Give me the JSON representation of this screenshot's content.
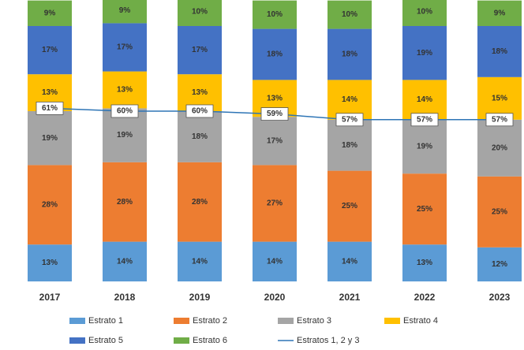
{
  "chart_data": {
    "type": "bar",
    "stacked": true,
    "categories": [
      "2017",
      "2018",
      "2019",
      "2020",
      "2021",
      "2022",
      "2023"
    ],
    "ylim": [
      0,
      100
    ],
    "series": [
      {
        "name": "Estrato 1",
        "color": "#5b9bd5",
        "values": [
          13,
          14,
          14,
          14,
          14,
          13,
          12
        ],
        "value_labels": [
          "13%",
          "14%",
          "14%",
          "14%",
          "14%",
          "13%",
          "12%"
        ]
      },
      {
        "name": "Estrato 2",
        "color": "#ed7d31",
        "values": [
          28,
          28,
          28,
          27,
          25,
          25,
          25
        ],
        "value_labels": [
          "28%",
          "28%",
          "28%",
          "27%",
          "25%",
          "25%",
          "25%"
        ]
      },
      {
        "name": "Estrato 3",
        "color": "#a5a5a5",
        "values": [
          19,
          19,
          18,
          17,
          18,
          19,
          20
        ],
        "value_labels": [
          "19%",
          "19%",
          "18%",
          "17%",
          "18%",
          "19%",
          "20%"
        ]
      },
      {
        "name": "Estrato 4",
        "color": "#ffc000",
        "values": [
          13,
          13,
          13,
          13,
          14,
          14,
          15
        ],
        "value_labels": [
          "13%",
          "13%",
          "13%",
          "13%",
          "14%",
          "14%",
          "15%"
        ]
      },
      {
        "name": "Estrato 5",
        "color": "#4472c4",
        "values": [
          17,
          17,
          17,
          18,
          18,
          19,
          18
        ],
        "value_labels": [
          "17%",
          "17%",
          "17%",
          "18%",
          "18%",
          "19%",
          "18%"
        ]
      },
      {
        "name": "Estrato 6",
        "color": "#70ad47",
        "values": [
          9,
          9,
          10,
          10,
          10,
          10,
          9
        ],
        "value_labels": [
          "9%",
          "9%",
          "10%",
          "10%",
          "10%",
          "10%",
          "9%"
        ]
      },
      {
        "name": "Estratos 1, 2 y 3",
        "type": "line",
        "color": "#2e75b6",
        "values": [
          61,
          60,
          60,
          59,
          57,
          57,
          57
        ],
        "value_labels": [
          "61%",
          "60%",
          "60%",
          "59%",
          "57%",
          "57%",
          "57%"
        ]
      }
    ]
  }
}
